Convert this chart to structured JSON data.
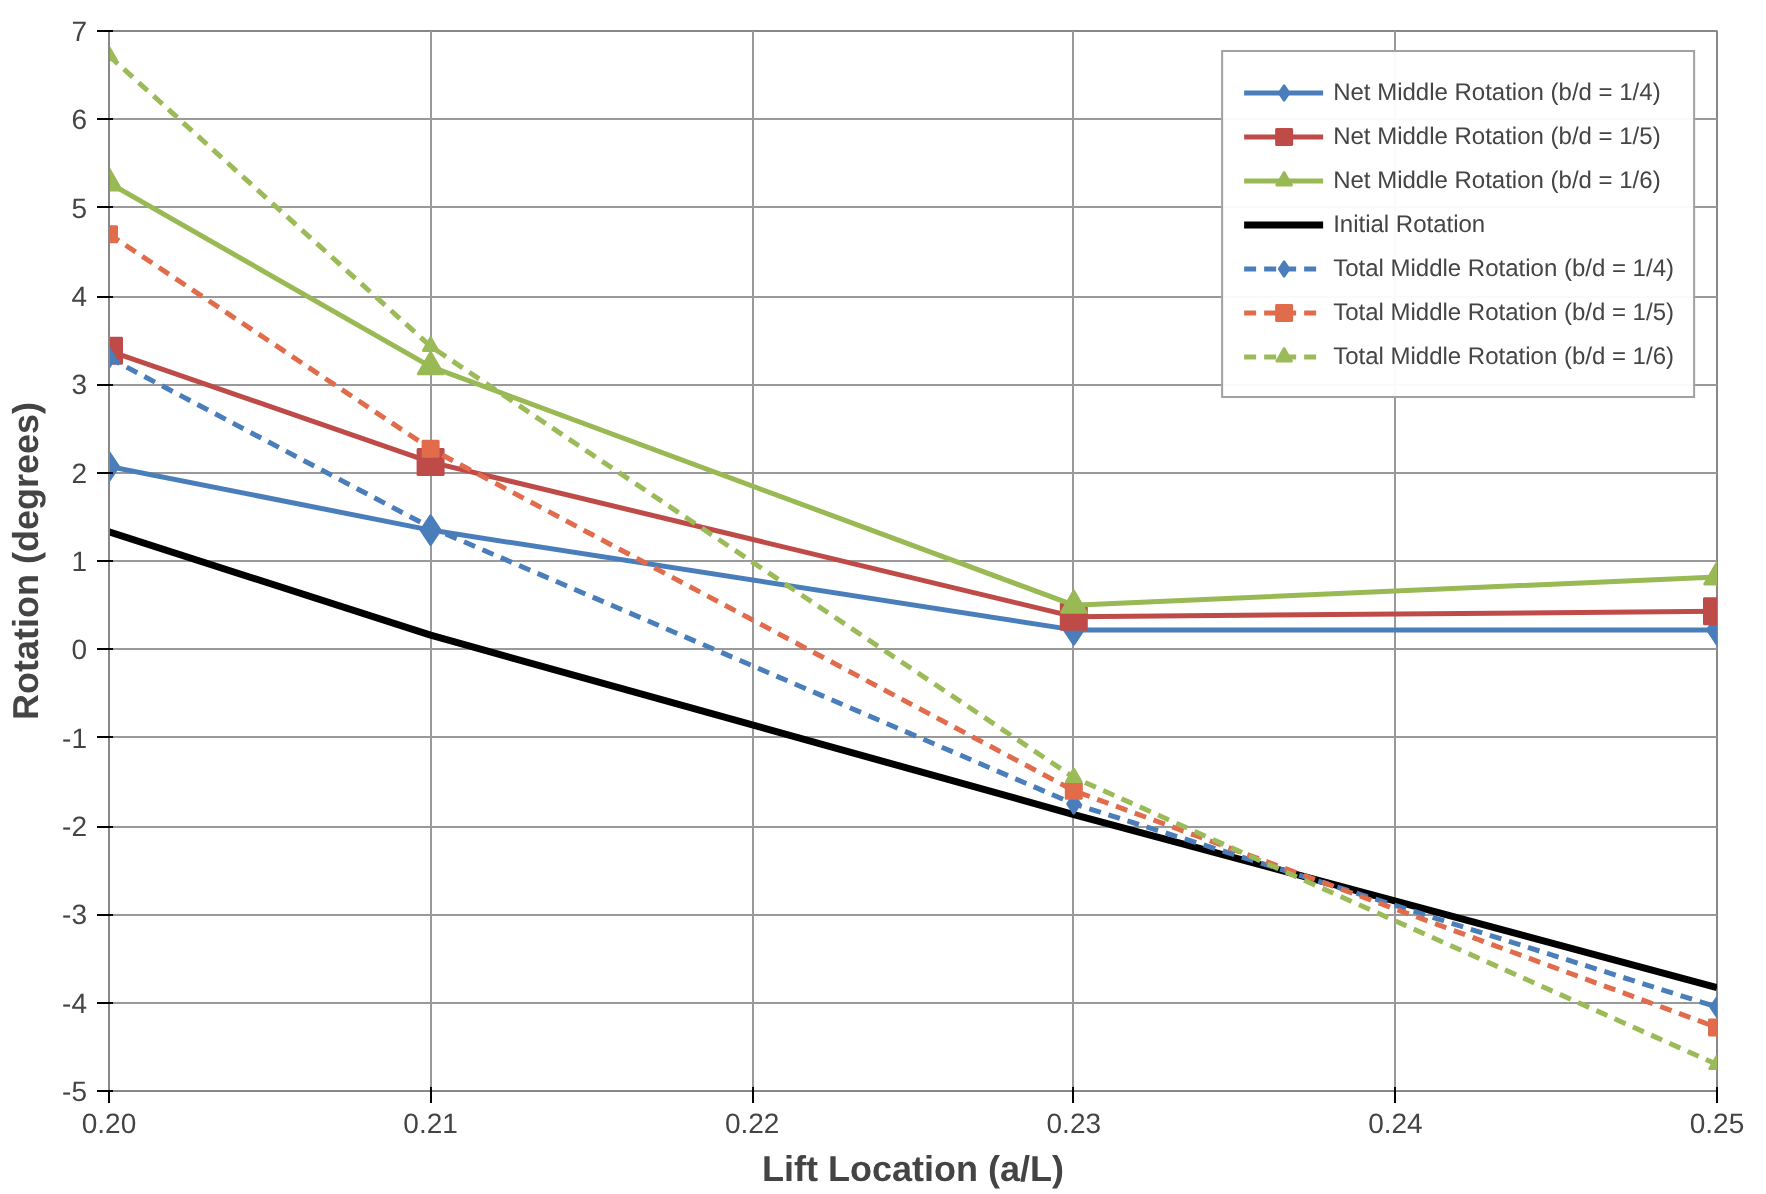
{
  "chart_data": {
    "type": "line",
    "xlabel": "Lift Location (a/L)",
    "ylabel": "Rotation (degrees)",
    "x": [
      0.2,
      0.21,
      0.23,
      0.25
    ],
    "series": [
      {
        "name": "Net Middle Rotation (b/d = 1/4)",
        "color": "#4a7ebb",
        "marker": "diamond",
        "line_style": "solid",
        "values": [
          2.07,
          1.35,
          0.22,
          0.22
        ]
      },
      {
        "name": "Net Middle Rotation (b/d = 1/5)",
        "color": "#be4b48",
        "marker": "square",
        "line_style": "solid",
        "values": [
          3.38,
          2.12,
          0.37,
          0.43
        ]
      },
      {
        "name": "Net Middle Rotation (b/d = 1/6)",
        "color": "#98b954",
        "marker": "triangle",
        "line_style": "solid",
        "values": [
          5.28,
          3.2,
          0.5,
          0.82
        ]
      },
      {
        "name": "Initial Rotation",
        "color": "#000000",
        "marker": "none",
        "line_style": "solid",
        "values": [
          1.33,
          0.16,
          -1.87,
          -3.83
        ]
      },
      {
        "name": "Total Middle Rotation (b/d = 1/4)",
        "color": "#4a7ebb",
        "marker": "diamond",
        "line_style": "dashed",
        "values": [
          3.3,
          1.38,
          -1.75,
          -4.05
        ]
      },
      {
        "name": "Total Middle Rotation (b/d = 1/5)",
        "color": "#e06c4c",
        "marker": "square",
        "line_style": "dashed",
        "values": [
          4.7,
          2.27,
          -1.6,
          -4.28
        ]
      },
      {
        "name": "Total Middle Rotation (b/d = 1/6)",
        "color": "#9bbb59",
        "marker": "triangle",
        "line_style": "dashed",
        "values": [
          6.72,
          3.43,
          -1.45,
          -4.7
        ]
      }
    ],
    "xlim": [
      0.2,
      0.25
    ],
    "xticks": [
      {
        "value": 0.2,
        "label": "0.20"
      },
      {
        "value": 0.21,
        "label": "0.21"
      },
      {
        "value": 0.22,
        "label": "0.22"
      },
      {
        "value": 0.23,
        "label": "0.23"
      },
      {
        "value": 0.24,
        "label": "0.24"
      },
      {
        "value": 0.25,
        "label": "0.25"
      }
    ],
    "ylim": [
      -5,
      7
    ],
    "yticks": [
      -5,
      -4,
      -3,
      -2,
      -1,
      0,
      1,
      2,
      3,
      4,
      5,
      6,
      7
    ],
    "grid": true,
    "legend": "top right"
  }
}
